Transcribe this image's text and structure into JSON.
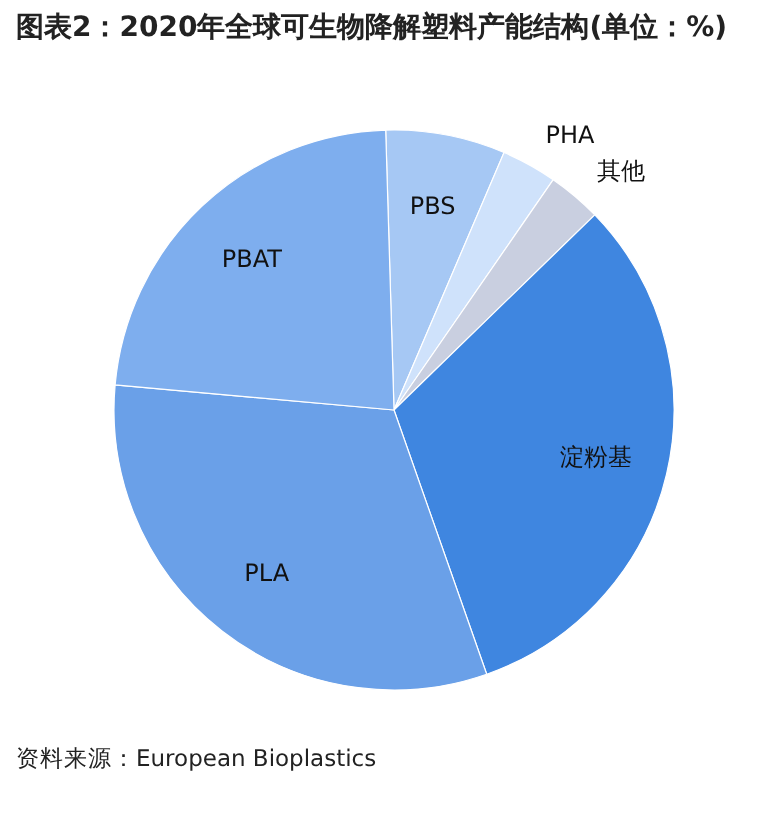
{
  "chart_data": {
    "type": "pie",
    "title": "图表2：2020年全球可生物降解塑料产能结构(单位：%)",
    "categories": [
      "PBS",
      "PHA",
      "其他",
      "淀粉基",
      "PLA",
      "PBAT"
    ],
    "values": [
      6.9,
      3.2,
      3.1,
      31.9,
      31.8,
      23.1
    ],
    "colors": [
      "#a6c8f4",
      "#cfe2fb",
      "#c9cfe0",
      "#3f86e0",
      "#6aa0e8",
      "#7eaeee"
    ],
    "annotations": [
      "资料来源：European Bioplastics"
    ]
  }
}
